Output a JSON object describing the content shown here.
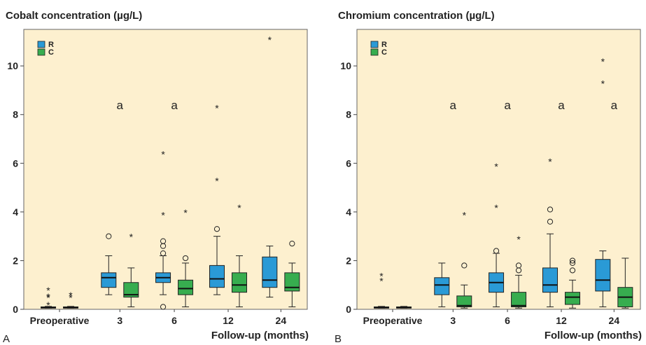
{
  "colors": {
    "background": "#fdf0cf",
    "R": "#2a9ad6",
    "C": "#37ad4f",
    "ink": "#222222"
  },
  "chart_data": [
    {
      "type": "box",
      "panel_label": "A",
      "title": "Cobalt concentration (µg/L)",
      "xlabel": "Follow-up (months)",
      "ylabel": "",
      "ylim": [
        0,
        11.5
      ],
      "yticks": [
        "0",
        "2",
        "4",
        "6",
        "8",
        "10"
      ],
      "categories": [
        "Preoperative",
        "3",
        "6",
        "12",
        "24"
      ],
      "legend": {
        "position": "top-left",
        "entries": [
          "R",
          "C"
        ]
      },
      "significance": [
        "",
        "a",
        "a",
        "",
        ""
      ],
      "series": [
        {
          "name": "R",
          "boxes": [
            {
              "min": 0.05,
              "q1": 0.05,
              "median": 0.07,
              "q3": 0.1,
              "max": 0.12,
              "outliers": [],
              "extremes": [
                0.2,
                0.5,
                0.55,
                0.8
              ]
            },
            {
              "min": 0.6,
              "q1": 0.9,
              "median": 1.3,
              "q3": 1.5,
              "max": 2.2,
              "outliers": [
                3.0
              ],
              "extremes": []
            },
            {
              "min": 0.6,
              "q1": 1.1,
              "median": 1.3,
              "q3": 1.5,
              "max": 2.2,
              "outliers": [
                0.1,
                2.3,
                2.6,
                2.8
              ],
              "extremes": [
                3.9,
                6.4
              ]
            },
            {
              "min": 0.6,
              "q1": 0.9,
              "median": 1.25,
              "q3": 1.8,
              "max": 3.0,
              "outliers": [
                3.3
              ],
              "extremes": [
                5.3,
                8.3
              ]
            },
            {
              "min": 0.5,
              "q1": 0.9,
              "median": 1.2,
              "q3": 2.15,
              "max": 2.6,
              "outliers": [],
              "extremes": [
                11.1
              ]
            }
          ]
        },
        {
          "name": "C",
          "boxes": [
            {
              "min": 0.05,
              "q1": 0.05,
              "median": 0.07,
              "q3": 0.1,
              "max": 0.12,
              "outliers": [],
              "extremes": [
                0.5,
                0.6
              ]
            },
            {
              "min": 0.1,
              "q1": 0.5,
              "median": 0.6,
              "q3": 1.1,
              "max": 1.7,
              "outliers": [],
              "extremes": [
                3.0
              ]
            },
            {
              "min": 0.1,
              "q1": 0.6,
              "median": 0.85,
              "q3": 1.2,
              "max": 1.9,
              "outliers": [
                2.1
              ],
              "extremes": [
                4.0
              ]
            },
            {
              "min": 0.1,
              "q1": 0.7,
              "median": 1.0,
              "q3": 1.5,
              "max": 2.2,
              "outliers": [],
              "extremes": [
                4.2
              ]
            },
            {
              "min": 0.1,
              "q1": 0.75,
              "median": 0.9,
              "q3": 1.5,
              "max": 1.9,
              "outliers": [
                2.7
              ],
              "extremes": []
            }
          ]
        }
      ]
    },
    {
      "type": "box",
      "panel_label": "B",
      "title": "Chromium concentration (µg/L)",
      "xlabel": "Follow-up (months)",
      "ylabel": "",
      "ylim": [
        0,
        11.5
      ],
      "yticks": [
        "0",
        "2",
        "4",
        "6",
        "8",
        "10"
      ],
      "categories": [
        "Preoperative",
        "3",
        "6",
        "12",
        "24"
      ],
      "legend": {
        "position": "top-left",
        "entries": [
          "R",
          "C"
        ]
      },
      "significance": [
        "",
        "a",
        "a",
        "a",
        "a"
      ],
      "series": [
        {
          "name": "R",
          "boxes": [
            {
              "min": 0.05,
              "q1": 0.05,
              "median": 0.07,
              "q3": 0.1,
              "max": 0.12,
              "outliers": [],
              "extremes": [
                1.2,
                1.4
              ]
            },
            {
              "min": 0.1,
              "q1": 0.6,
              "median": 1.0,
              "q3": 1.3,
              "max": 1.9,
              "outliers": [],
              "extremes": []
            },
            {
              "min": 0.1,
              "q1": 0.7,
              "median": 1.1,
              "q3": 1.5,
              "max": 2.3,
              "outliers": [
                2.4
              ],
              "extremes": [
                4.2,
                5.9
              ]
            },
            {
              "min": 0.1,
              "q1": 0.7,
              "median": 1.0,
              "q3": 1.7,
              "max": 3.1,
              "outliers": [
                3.6,
                4.1
              ],
              "extremes": [
                6.1
              ]
            },
            {
              "min": 0.1,
              "q1": 0.75,
              "median": 1.2,
              "q3": 2.05,
              "max": 2.4,
              "outliers": [],
              "extremes": [
                9.3,
                10.2
              ]
            }
          ]
        },
        {
          "name": "C",
          "boxes": [
            {
              "min": 0.05,
              "q1": 0.05,
              "median": 0.07,
              "q3": 0.1,
              "max": 0.12,
              "outliers": [],
              "extremes": []
            },
            {
              "min": 0.05,
              "q1": 0.1,
              "median": 0.15,
              "q3": 0.55,
              "max": 1.0,
              "outliers": [
                1.8
              ],
              "extremes": [
                3.9
              ]
            },
            {
              "min": 0.05,
              "q1": 0.1,
              "median": 0.15,
              "q3": 0.7,
              "max": 1.4,
              "outliers": [
                1.6,
                1.8
              ],
              "extremes": [
                2.9
              ]
            },
            {
              "min": 0.05,
              "q1": 0.2,
              "median": 0.5,
              "q3": 0.7,
              "max": 1.2,
              "outliers": [
                1.6,
                1.9,
                2.0
              ],
              "extremes": []
            },
            {
              "min": 0.05,
              "q1": 0.1,
              "median": 0.5,
              "q3": 0.9,
              "max": 2.1,
              "outliers": [],
              "extremes": []
            }
          ]
        }
      ]
    }
  ]
}
